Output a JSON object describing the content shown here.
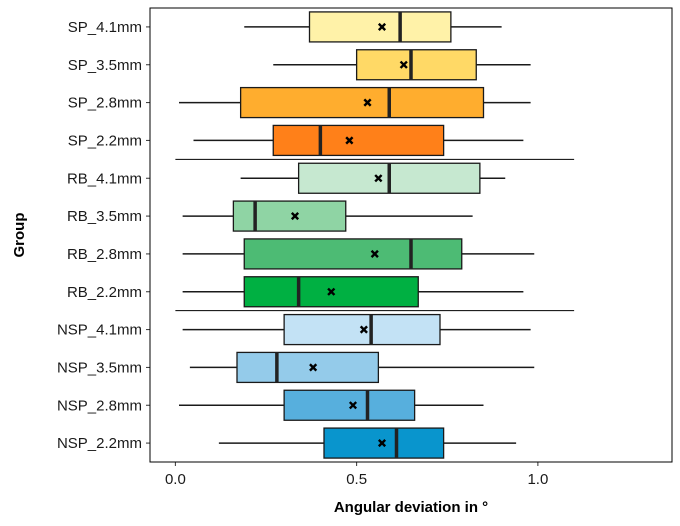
{
  "chart_data": {
    "type": "boxplot",
    "orientation": "horizontal",
    "xlabel": "Angular deviation in °",
    "ylabel": "Group",
    "xlim": [
      -0.07,
      1.37
    ],
    "x_ticks": [
      0.0,
      0.5,
      1.0
    ],
    "x_tick_labels": [
      "0.0",
      "0.5",
      "1.0"
    ],
    "grid": false,
    "legend": "none",
    "mean_marker": "x",
    "group_separators_after": [
      "SP_2.2mm",
      "RB_2.2mm"
    ],
    "groups": [
      {
        "name": "SP_4.1mm",
        "whisker_low": 0.19,
        "q1": 0.37,
        "median": 0.62,
        "q3": 0.76,
        "whisker_high": 0.9,
        "mean": 0.57,
        "color": "#FFF2A8"
      },
      {
        "name": "SP_3.5mm",
        "whisker_low": 0.27,
        "q1": 0.5,
        "median": 0.65,
        "q3": 0.83,
        "whisker_high": 0.98,
        "mean": 0.63,
        "color": "#FFD966"
      },
      {
        "name": "SP_2.8mm",
        "whisker_low": 0.01,
        "q1": 0.18,
        "median": 0.59,
        "q3": 0.85,
        "whisker_high": 0.98,
        "mean": 0.53,
        "color": "#FFAD2E"
      },
      {
        "name": "SP_2.2mm",
        "whisker_low": 0.05,
        "q1": 0.27,
        "median": 0.4,
        "q3": 0.74,
        "whisker_high": 0.96,
        "mean": 0.48,
        "color": "#FF8019"
      },
      {
        "name": "RB_4.1mm",
        "whisker_low": 0.18,
        "q1": 0.34,
        "median": 0.59,
        "q3": 0.84,
        "whisker_high": 0.91,
        "mean": 0.56,
        "color": "#C6E8D0"
      },
      {
        "name": "RB_3.5mm",
        "whisker_low": 0.02,
        "q1": 0.16,
        "median": 0.22,
        "q3": 0.47,
        "whisker_high": 0.82,
        "mean": 0.33,
        "color": "#8FD4A4"
      },
      {
        "name": "RB_2.8mm",
        "whisker_low": 0.02,
        "q1": 0.19,
        "median": 0.65,
        "q3": 0.79,
        "whisker_high": 0.99,
        "mean": 0.55,
        "color": "#4DBB74"
      },
      {
        "name": "RB_2.2mm",
        "whisker_low": 0.02,
        "q1": 0.19,
        "median": 0.34,
        "q3": 0.67,
        "whisker_high": 0.96,
        "mean": 0.43,
        "color": "#00B042"
      },
      {
        "name": "NSP_4.1mm",
        "whisker_low": 0.02,
        "q1": 0.3,
        "median": 0.54,
        "q3": 0.73,
        "whisker_high": 0.98,
        "mean": 0.52,
        "color": "#C3E2F5"
      },
      {
        "name": "NSP_3.5mm",
        "whisker_low": 0.04,
        "q1": 0.17,
        "median": 0.28,
        "q3": 0.56,
        "whisker_high": 0.99,
        "mean": 0.38,
        "color": "#94CBEA"
      },
      {
        "name": "NSP_2.8mm",
        "whisker_low": 0.01,
        "q1": 0.3,
        "median": 0.53,
        "q3": 0.66,
        "whisker_high": 0.85,
        "mean": 0.49,
        "color": "#57AFDD"
      },
      {
        "name": "NSP_2.2mm",
        "whisker_low": 0.12,
        "q1": 0.41,
        "median": 0.61,
        "q3": 0.74,
        "whisker_high": 0.94,
        "mean": 0.57,
        "color": "#0995CD"
      }
    ]
  }
}
